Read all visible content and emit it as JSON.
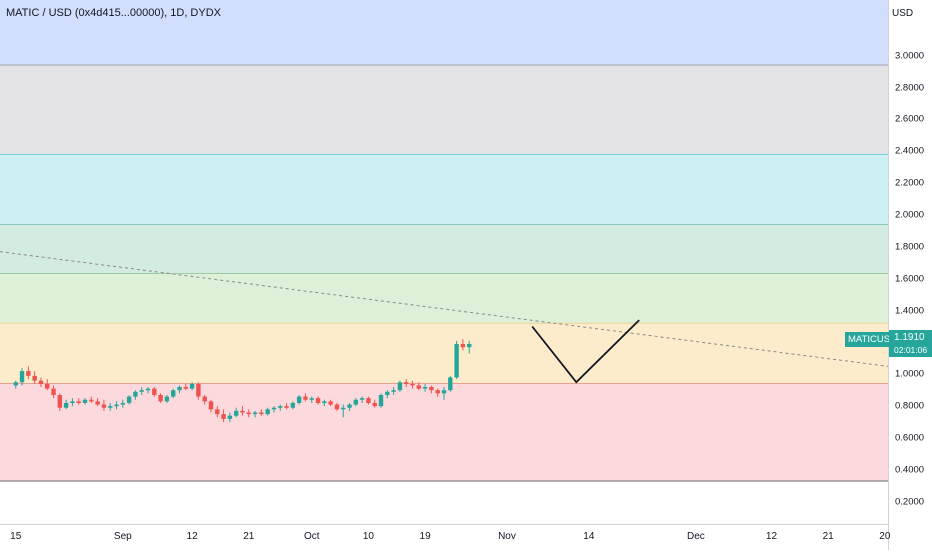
{
  "header": {
    "title": "MATIC / USD (0x4d415...00000), 1D, DYDX"
  },
  "axis": {
    "unit": "USD",
    "y_ticks": [
      {
        "v": 3.0,
        "label": "3.0000"
      },
      {
        "v": 2.8,
        "label": "2.8000"
      },
      {
        "v": 2.6,
        "label": "2.6000"
      },
      {
        "v": 2.4,
        "label": "2.4000"
      },
      {
        "v": 2.2,
        "label": "2.2000"
      },
      {
        "v": 2.0,
        "label": "2.0000"
      },
      {
        "v": 1.8,
        "label": "1.8000"
      },
      {
        "v": 1.6,
        "label": "1.6000"
      },
      {
        "v": 1.4,
        "label": "1.4000"
      },
      {
        "v": 1.0,
        "label": "1.0000"
      },
      {
        "v": 0.8,
        "label": "0.8000"
      },
      {
        "v": 0.6,
        "label": "0.6000"
      },
      {
        "v": 0.4,
        "label": "0.4000"
      },
      {
        "v": 0.2,
        "label": "0.2000"
      }
    ],
    "x_ticks": [
      {
        "d": 0,
        "label": "15"
      },
      {
        "d": 17,
        "label": "Sep"
      },
      {
        "d": 28,
        "label": "12"
      },
      {
        "d": 37,
        "label": "21"
      },
      {
        "d": 47,
        "label": "Oct"
      },
      {
        "d": 56,
        "label": "10"
      },
      {
        "d": 65,
        "label": "19"
      },
      {
        "d": 78,
        "label": "Nov"
      },
      {
        "d": 91,
        "label": "14"
      },
      {
        "d": 108,
        "label": "Dec"
      },
      {
        "d": 120,
        "label": "12"
      },
      {
        "d": 129,
        "label": "21"
      },
      {
        "d": 138,
        "label": "20"
      }
    ]
  },
  "price_tag": {
    "symbol": "MATICUSD",
    "price": "1.1910",
    "countdown": "02:01:06",
    "color": "#26a69a"
  },
  "chart_data": {
    "type": "candlestick",
    "ylim": [
      0.06,
      3.35
    ],
    "x_range_days": [
      -2.5,
      138.5
    ],
    "x_start_label": "15 (Aug)",
    "up_color": "#26a69a",
    "down_color": "#ef5350",
    "zones": [
      {
        "from": 2.94,
        "to": 3.35,
        "fill": "#d1defc",
        "line": "#6b6b6b"
      },
      {
        "from": 2.38,
        "to": 2.94,
        "fill": "#e4e4e6",
        "line": "#27b6b6"
      },
      {
        "from": 1.94,
        "to": 2.38,
        "fill": "#ccf0f3",
        "line": "#2e9e8e"
      },
      {
        "from": 1.63,
        "to": 1.94,
        "fill": "#d4ebe1",
        "line": "#56a65a"
      },
      {
        "from": 1.32,
        "to": 1.63,
        "fill": "#dff0d8",
        "line": "#e8b24a"
      },
      {
        "from": 0.94,
        "to": 1.32,
        "fill": "#fdeccc",
        "line": "#d94f4f"
      },
      {
        "from": 0.33,
        "to": 0.94,
        "fill": "#fbd9dc",
        "line": "#6b6b6b"
      }
    ],
    "trendline": {
      "from": {
        "d": -2.5,
        "v": 1.77
      },
      "to": {
        "d": 138.5,
        "v": 1.05
      },
      "color": "#8a8a8a"
    },
    "projection": [
      {
        "d": 82,
        "v": 1.3
      },
      {
        "d": 89,
        "v": 0.95
      },
      {
        "d": 99,
        "v": 1.34
      }
    ],
    "ohlc": [
      [
        0.93,
        0.96,
        0.91,
        0.95
      ],
      [
        0.95,
        1.04,
        0.93,
        1.02
      ],
      [
        1.02,
        1.05,
        0.97,
        0.99
      ],
      [
        0.99,
        1.02,
        0.94,
        0.96
      ],
      [
        0.96,
        0.98,
        0.92,
        0.94
      ],
      [
        0.94,
        0.97,
        0.9,
        0.91
      ],
      [
        0.91,
        0.93,
        0.85,
        0.87
      ],
      [
        0.87,
        0.88,
        0.77,
        0.79
      ],
      [
        0.79,
        0.84,
        0.78,
        0.82
      ],
      [
        0.82,
        0.85,
        0.8,
        0.83
      ],
      [
        0.83,
        0.85,
        0.81,
        0.82
      ],
      [
        0.82,
        0.85,
        0.81,
        0.84
      ],
      [
        0.84,
        0.86,
        0.82,
        0.83
      ],
      [
        0.83,
        0.85,
        0.8,
        0.81
      ],
      [
        0.81,
        0.84,
        0.77,
        0.79
      ],
      [
        0.79,
        0.82,
        0.77,
        0.8
      ],
      [
        0.8,
        0.83,
        0.78,
        0.81
      ],
      [
        0.81,
        0.84,
        0.79,
        0.82
      ],
      [
        0.82,
        0.87,
        0.81,
        0.86
      ],
      [
        0.86,
        0.9,
        0.84,
        0.89
      ],
      [
        0.89,
        0.92,
        0.87,
        0.9
      ],
      [
        0.9,
        0.92,
        0.88,
        0.91
      ],
      [
        0.91,
        0.92,
        0.86,
        0.87
      ],
      [
        0.87,
        0.88,
        0.82,
        0.83
      ],
      [
        0.83,
        0.87,
        0.82,
        0.86
      ],
      [
        0.86,
        0.91,
        0.85,
        0.9
      ],
      [
        0.9,
        0.93,
        0.88,
        0.92
      ],
      [
        0.92,
        0.94,
        0.9,
        0.91
      ],
      [
        0.91,
        0.95,
        0.9,
        0.94
      ],
      [
        0.94,
        0.95,
        0.84,
        0.86
      ],
      [
        0.86,
        0.87,
        0.81,
        0.83
      ],
      [
        0.83,
        0.84,
        0.76,
        0.78
      ],
      [
        0.78,
        0.8,
        0.73,
        0.75
      ],
      [
        0.75,
        0.78,
        0.7,
        0.72
      ],
      [
        0.72,
        0.76,
        0.7,
        0.74
      ],
      [
        0.74,
        0.79,
        0.73,
        0.77
      ],
      [
        0.77,
        0.8,
        0.74,
        0.76
      ],
      [
        0.76,
        0.78,
        0.73,
        0.75
      ],
      [
        0.75,
        0.77,
        0.73,
        0.76
      ],
      [
        0.76,
        0.78,
        0.74,
        0.75
      ],
      [
        0.75,
        0.79,
        0.74,
        0.78
      ],
      [
        0.78,
        0.8,
        0.76,
        0.79
      ],
      [
        0.79,
        0.81,
        0.77,
        0.8
      ],
      [
        0.8,
        0.82,
        0.78,
        0.79
      ],
      [
        0.79,
        0.83,
        0.78,
        0.82
      ],
      [
        0.82,
        0.87,
        0.81,
        0.86
      ],
      [
        0.86,
        0.88,
        0.83,
        0.84
      ],
      [
        0.84,
        0.86,
        0.82,
        0.85
      ],
      [
        0.85,
        0.86,
        0.81,
        0.82
      ],
      [
        0.82,
        0.84,
        0.8,
        0.83
      ],
      [
        0.83,
        0.84,
        0.8,
        0.81
      ],
      [
        0.81,
        0.82,
        0.77,
        0.78
      ],
      [
        0.78,
        0.81,
        0.73,
        0.79
      ],
      [
        0.79,
        0.82,
        0.77,
        0.81
      ],
      [
        0.81,
        0.85,
        0.8,
        0.84
      ],
      [
        0.84,
        0.86,
        0.82,
        0.85
      ],
      [
        0.85,
        0.86,
        0.81,
        0.82
      ],
      [
        0.82,
        0.84,
        0.79,
        0.8
      ],
      [
        0.8,
        0.88,
        0.79,
        0.87
      ],
      [
        0.87,
        0.9,
        0.85,
        0.89
      ],
      [
        0.89,
        0.92,
        0.87,
        0.9
      ],
      [
        0.9,
        0.96,
        0.89,
        0.95
      ],
      [
        0.95,
        0.97,
        0.92,
        0.94
      ],
      [
        0.94,
        0.96,
        0.91,
        0.93
      ],
      [
        0.93,
        0.95,
        0.9,
        0.91
      ],
      [
        0.91,
        0.94,
        0.89,
        0.92
      ],
      [
        0.92,
        0.93,
        0.88,
        0.9
      ],
      [
        0.9,
        0.91,
        0.86,
        0.88
      ],
      [
        0.88,
        0.92,
        0.84,
        0.9
      ],
      [
        0.9,
        0.99,
        0.89,
        0.98
      ],
      [
        0.98,
        1.21,
        0.97,
        1.19
      ],
      [
        1.19,
        1.22,
        1.15,
        1.17
      ],
      [
        1.17,
        1.21,
        1.13,
        1.19
      ]
    ]
  }
}
